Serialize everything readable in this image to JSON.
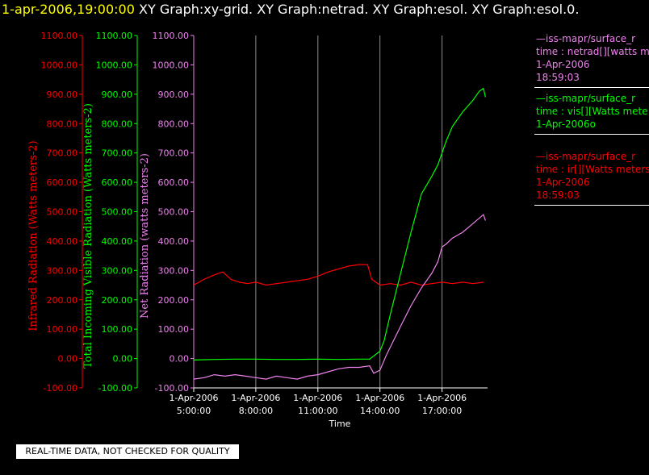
{
  "header": {
    "timestamp": "1-apr-2006,19:00:00",
    "titles": [
      "XY Graph:xy-grid.",
      "XY Graph:netrad.",
      "XY Graph:esol.",
      "XY Graph:esol.0."
    ]
  },
  "footer_note": "REAL-TIME DATA, NOT CHECKED FOR QUALITY",
  "colors": {
    "red": "#ff0000",
    "green": "#00ff00",
    "violet": "#ee82ee",
    "white": "#ffffff",
    "yellow": "#ffff00",
    "background": "#000000"
  },
  "legend": [
    {
      "color": "#ee82ee",
      "lines": [
        "—iss-mapr/surface_r",
        "time : netrad[][watts me",
        "1-Apr-2006",
        "18:59:03"
      ]
    },
    {
      "color": "#00ff00",
      "lines": [
        "—iss-mapr/surface_r",
        "time : vis[][Watts mete",
        "1-Apr-2006o"
      ]
    },
    {
      "color": "#ff0000",
      "lines": [
        "—iss-mapr/surface_r",
        "time : ir[][Watts meters",
        "1-Apr-2006",
        "18:59:03"
      ]
    }
  ],
  "chart_data": {
    "type": "line",
    "xlabel": "Time",
    "x_ticks": [
      {
        "hour": 5,
        "label": [
          "1-Apr-2006",
          "5:00:00"
        ]
      },
      {
        "hour": 8,
        "label": [
          "1-Apr-2006",
          "8:00:00"
        ]
      },
      {
        "hour": 11,
        "label": [
          "1-Apr-2006",
          "11:00:00"
        ]
      },
      {
        "hour": 14,
        "label": [
          "1-Apr-2006",
          "14:00:00"
        ]
      },
      {
        "hour": 17,
        "label": [
          "1-Apr-2006",
          "17:00:00"
        ]
      }
    ],
    "xlim": [
      5,
      19.2
    ],
    "grid": "vertical lines at tick times",
    "y_axes": [
      {
        "label": "Infrared Radiation (Watts meters-2)",
        "color": "#ff0000",
        "ylim": [
          -100,
          1100
        ],
        "ticks": [
          "-100.00",
          "0.00",
          "100.00",
          "200.00",
          "300.00",
          "400.00",
          "500.00",
          "600.00",
          "700.00",
          "800.00",
          "900.00",
          "1000.00",
          "1100.00"
        ]
      },
      {
        "label": "Total Incoming Visible Radiation (Watts meters-2)",
        "color": "#00ff00",
        "ylim": [
          -100,
          1100
        ],
        "ticks": [
          "-100.00",
          "0.00",
          "100.00",
          "200.00",
          "300.00",
          "400.00",
          "500.00",
          "600.00",
          "700.00",
          "800.00",
          "900.00",
          "1000.00",
          "1100.00"
        ]
      },
      {
        "label": "Net Radiation (watts meters-2)",
        "color": "#ee82ee",
        "ylim": [
          -100,
          1100
        ],
        "ticks": [
          "-100.00",
          "0.00",
          "100.00",
          "200.00",
          "300.00",
          "400.00",
          "500.00",
          "600.00",
          "700.00",
          "800.00",
          "900.00",
          "1000.00",
          "1100.00"
        ]
      }
    ],
    "series": [
      {
        "color": "#ff0000",
        "x": [
          5.0,
          5.5,
          6.0,
          6.4,
          6.8,
          7.2,
          7.6,
          8.0,
          8.5,
          9.0,
          9.5,
          10.0,
          10.5,
          11.0,
          11.5,
          12.0,
          12.5,
          13.0,
          13.4,
          13.6,
          14.0,
          14.5,
          15.0,
          15.5,
          16.0,
          16.5,
          17.0,
          17.5,
          18.0,
          18.5,
          19.0
        ],
        "y": [
          250,
          270,
          285,
          295,
          270,
          260,
          255,
          260,
          250,
          255,
          260,
          265,
          270,
          280,
          295,
          305,
          315,
          320,
          320,
          270,
          250,
          255,
          250,
          260,
          250,
          255,
          260,
          255,
          260,
          255,
          260
        ]
      },
      {
        "color": "#00ff00",
        "x": [
          5.0,
          6.0,
          7.0,
          8.0,
          9.0,
          10.0,
          11.0,
          12.0,
          13.0,
          13.5,
          14.0,
          14.2,
          14.5,
          15.0,
          15.5,
          16.0,
          16.5,
          16.8,
          17.0,
          17.2,
          17.5,
          18.0,
          18.5,
          18.8,
          19.0,
          19.1
        ],
        "y": [
          -5,
          -3,
          -2,
          -2,
          -3,
          -3,
          -2,
          -3,
          -2,
          -2,
          25,
          60,
          150,
          290,
          430,
          560,
          620,
          660,
          700,
          740,
          790,
          840,
          880,
          910,
          920,
          890
        ]
      },
      {
        "color": "#ee82ee",
        "x": [
          5.0,
          5.5,
          6.0,
          6.5,
          7.0,
          7.5,
          8.0,
          8.5,
          9.0,
          9.5,
          10.0,
          10.5,
          11.0,
          11.5,
          12.0,
          12.5,
          13.0,
          13.5,
          13.7,
          14.0,
          14.3,
          15.0,
          15.5,
          16.0,
          16.5,
          16.8,
          17.0,
          17.2,
          17.5,
          18.0,
          18.5,
          19.0,
          19.1
        ],
        "y": [
          -70,
          -65,
          -55,
          -60,
          -55,
          -60,
          -65,
          -70,
          -60,
          -65,
          -70,
          -60,
          -55,
          -45,
          -35,
          -30,
          -30,
          -25,
          -50,
          -40,
          10,
          110,
          180,
          240,
          290,
          330,
          380,
          390,
          410,
          430,
          460,
          490,
          470
        ]
      }
    ]
  }
}
